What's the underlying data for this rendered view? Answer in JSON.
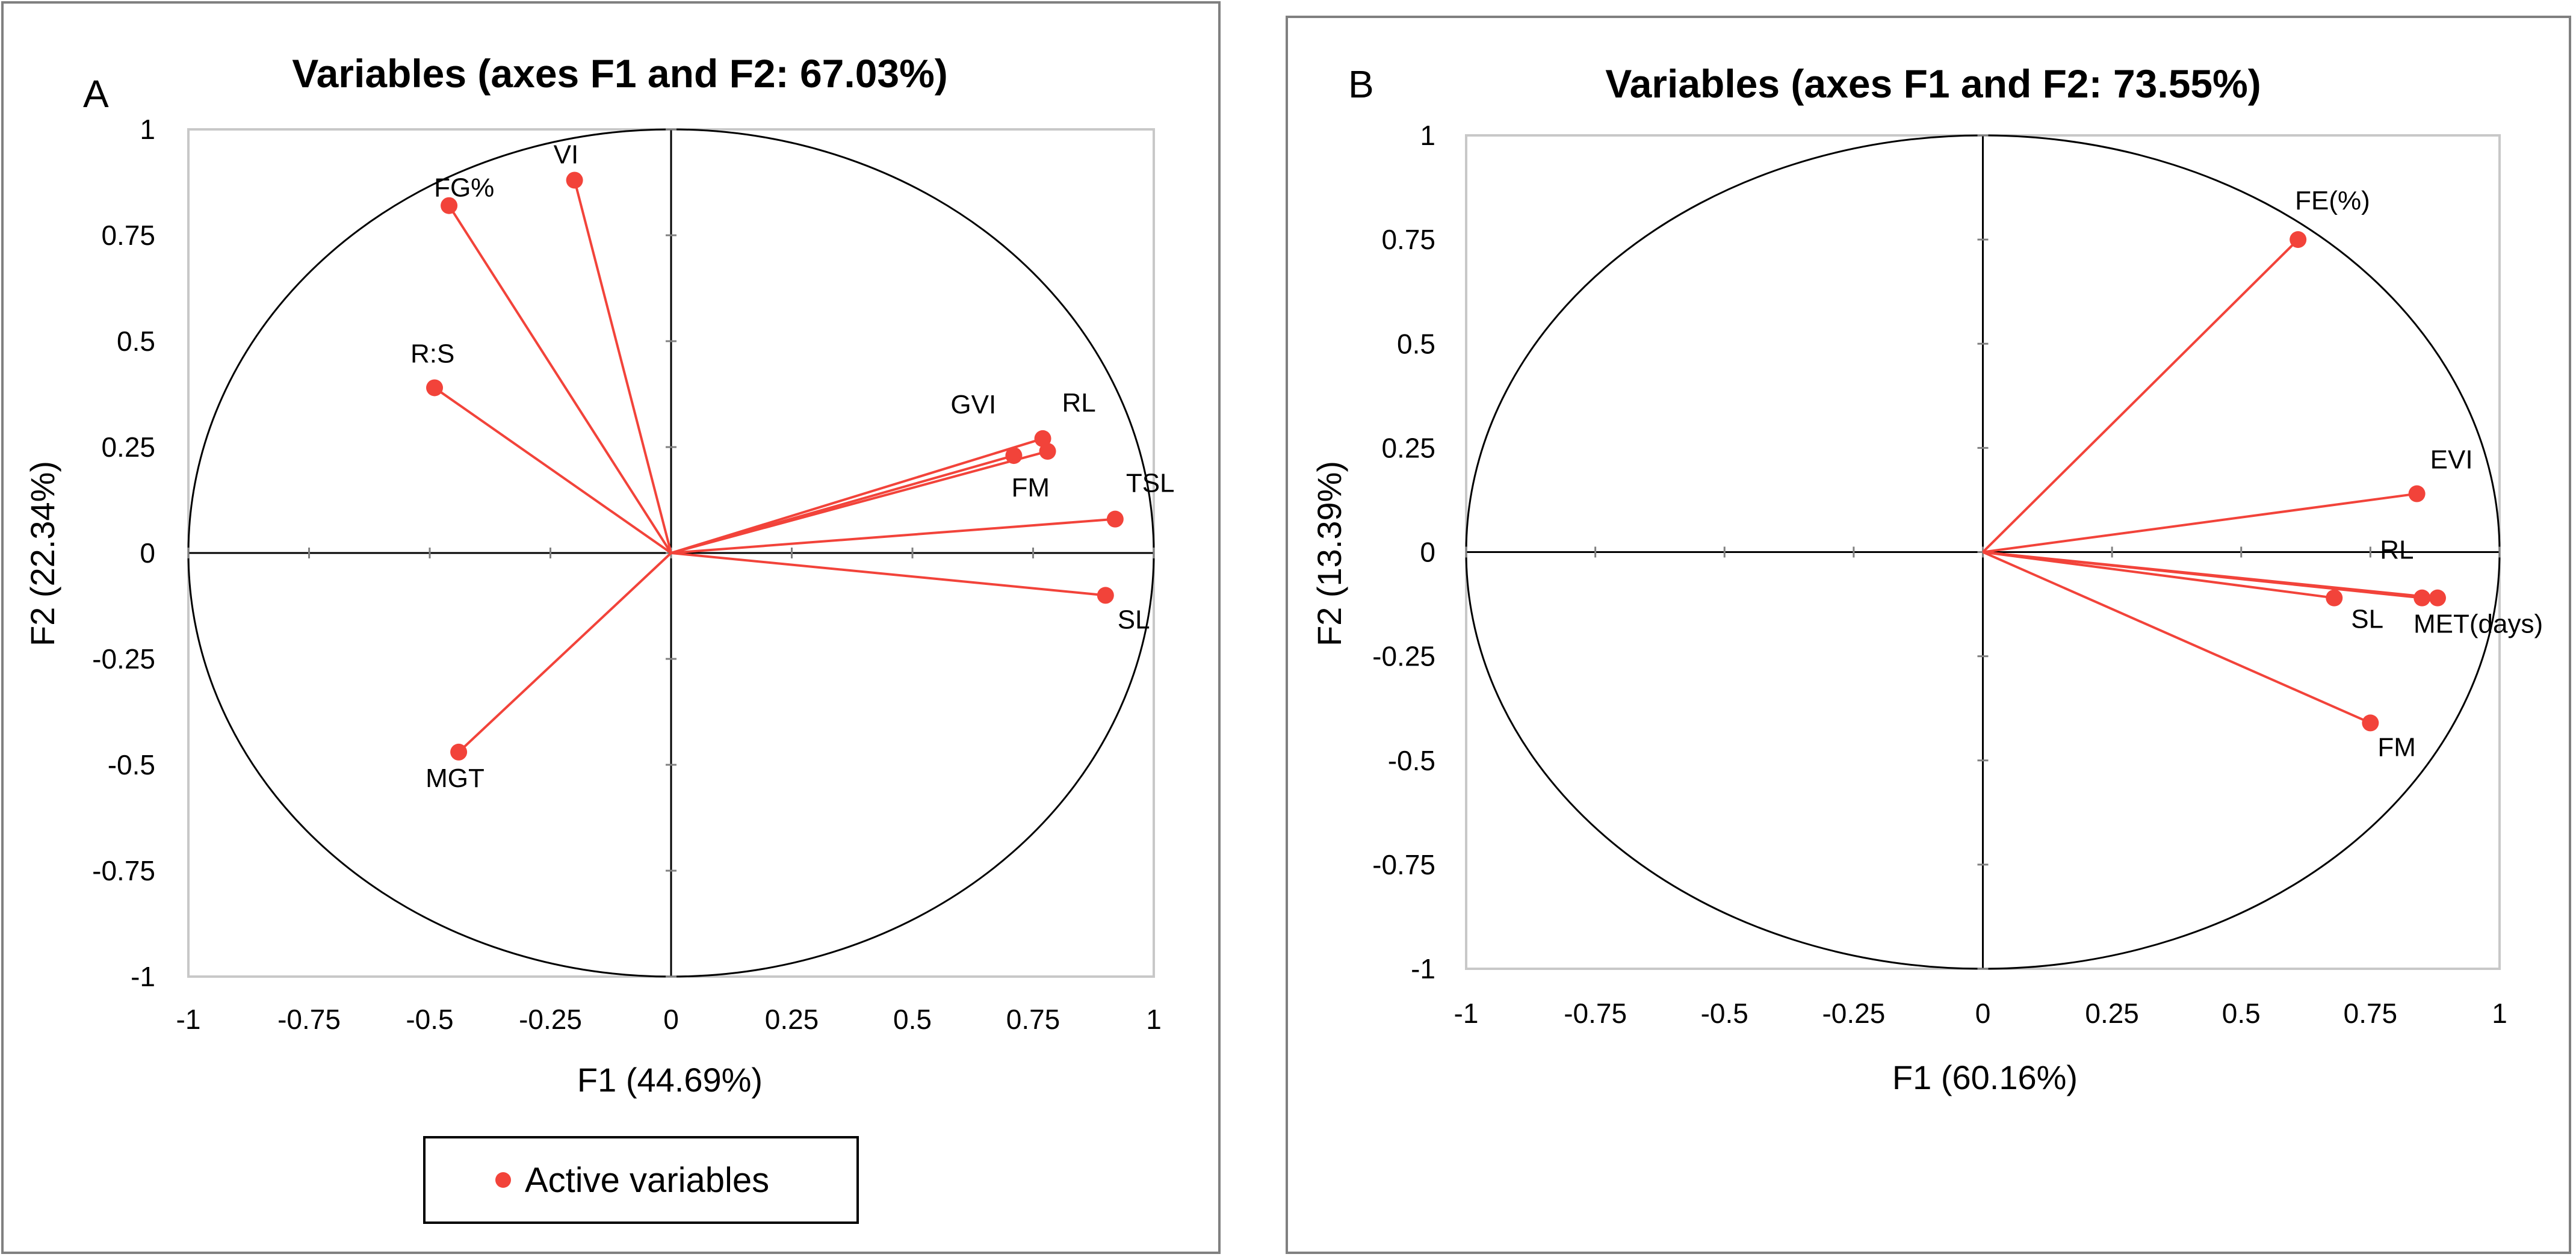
{
  "chart_data": [
    {
      "type": "scatter",
      "panel": "A",
      "title": "Variables (axes F1 and F2: 67.03%)",
      "xlabel": "F1 (44.69%)",
      "ylabel": "F2 (22.34%)",
      "xlim": [
        -1,
        1
      ],
      "ylim": [
        -1,
        1
      ],
      "xticks": [
        "-1",
        "-0.75",
        "-0.5",
        "-0.25",
        "0",
        "0.25",
        "0.5",
        "0.75",
        "1"
      ],
      "yticks": [
        "1",
        "0.75",
        "0.5",
        "0.25",
        "0",
        "-0.25",
        "-0.5",
        "-0.75",
        "-1"
      ],
      "legend": "Active variables",
      "points": [
        {
          "label": "FG%",
          "x": -0.46,
          "y": 0.82
        },
        {
          "label": "VI",
          "x": -0.2,
          "y": 0.88
        },
        {
          "label": "R:S",
          "x": -0.49,
          "y": 0.39
        },
        {
          "label": "GVI",
          "x": 0.71,
          "y": 0.23
        },
        {
          "label": "RL",
          "x": 0.77,
          "y": 0.27
        },
        {
          "label": "FM",
          "x": 0.78,
          "y": 0.24
        },
        {
          "label": "TSL",
          "x": 0.92,
          "y": 0.08
        },
        {
          "label": "SL",
          "x": 0.9,
          "y": -0.1
        },
        {
          "label": "MGT",
          "x": -0.44,
          "y": -0.47
        }
      ]
    },
    {
      "type": "scatter",
      "panel": "B",
      "title": "Variables (axes F1 and F2: 73.55%)",
      "xlabel": "F1 (60.16%)",
      "ylabel": "F2 (13.39%)",
      "xlim": [
        -1,
        1
      ],
      "ylim": [
        -1,
        1
      ],
      "xticks": [
        "-1",
        "-0.75",
        "-0.5",
        "-0.25",
        "0",
        "0.25",
        "0.5",
        "0.75",
        "1"
      ],
      "yticks": [
        "1",
        "0.75",
        "0.5",
        "0.25",
        "0",
        "-0.25",
        "-0.5",
        "-0.75",
        "-1"
      ],
      "points": [
        {
          "label": "FE(%)",
          "x": 0.61,
          "y": 0.75
        },
        {
          "label": "EVI",
          "x": 0.84,
          "y": 0.14
        },
        {
          "label": "RL",
          "x": 0.85,
          "y": -0.11
        },
        {
          "label": "MET(days)",
          "x": 0.88,
          "y": -0.11
        },
        {
          "label": "SL",
          "x": 0.68,
          "y": -0.11
        },
        {
          "label": "FM",
          "x": 0.75,
          "y": -0.41
        }
      ]
    }
  ],
  "colors": {
    "point": "#f2433a",
    "axis": "#000000",
    "frame": "#c8c8c8",
    "panel_border": "#808080"
  }
}
